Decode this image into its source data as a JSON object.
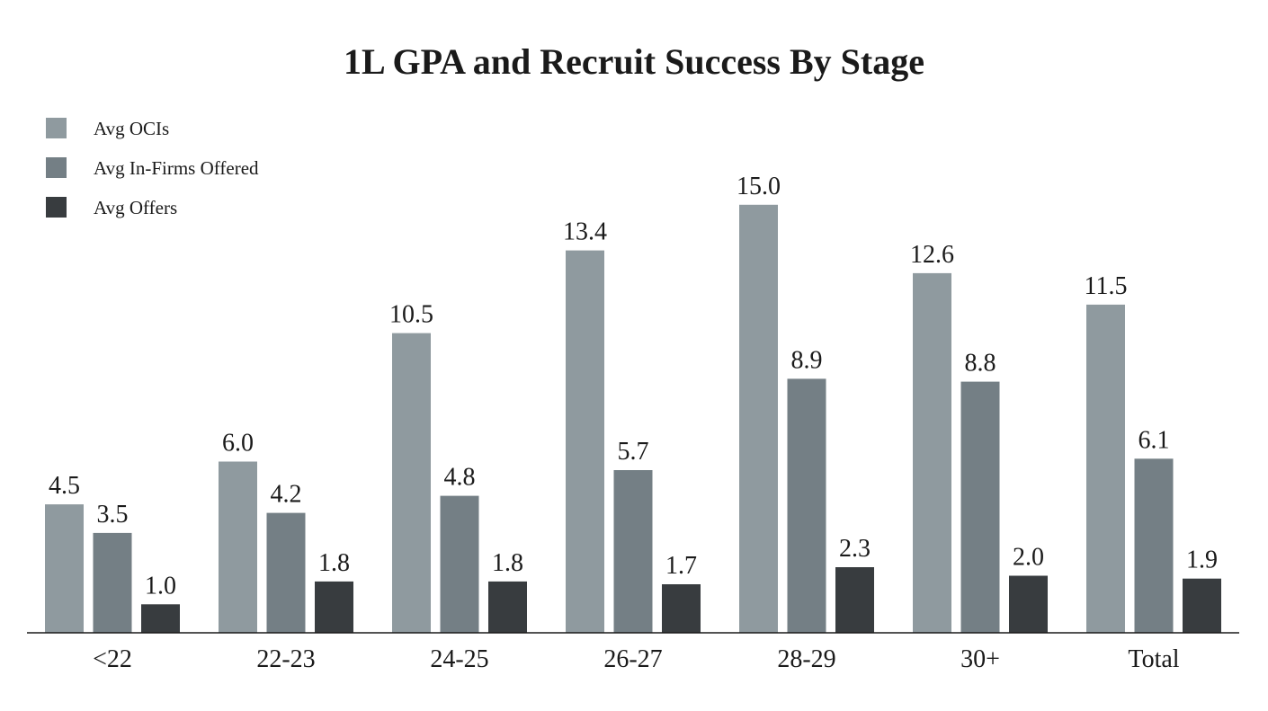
{
  "chart_data": {
    "type": "bar",
    "title": "1L GPA and Recruit Success By Stage",
    "xlabel": "",
    "ylabel": "",
    "ylim": [
      0,
      16
    ],
    "grid": false,
    "legend_position": "top-left",
    "categories": [
      "<22",
      "22-23",
      "24-25",
      "26-27",
      "28-29",
      "30+",
      "Total"
    ],
    "series": [
      {
        "name": "Avg OCIs",
        "color": "#8f9a9f",
        "values": [
          4.5,
          6.0,
          10.5,
          13.4,
          15.0,
          12.6,
          11.5
        ],
        "labels": [
          "4.5",
          "6.0",
          "10.5",
          "13.4",
          "15.0",
          "12.6",
          "11.5"
        ]
      },
      {
        "name": "Avg In-Firms Offered",
        "color": "#747f85",
        "values": [
          3.5,
          4.2,
          4.8,
          5.7,
          8.9,
          8.8,
          6.1
        ],
        "labels": [
          "3.5",
          "4.2",
          "4.8",
          "5.7",
          "8.9",
          "8.8",
          "6.1"
        ]
      },
      {
        "name": "Avg Offers",
        "color": "#383c3f",
        "values": [
          1.0,
          1.8,
          1.8,
          1.7,
          2.3,
          2.0,
          1.9
        ],
        "labels": [
          "1.0",
          "1.8",
          "1.8",
          "1.7",
          "2.3",
          "2.0",
          "1.9"
        ]
      }
    ]
  }
}
